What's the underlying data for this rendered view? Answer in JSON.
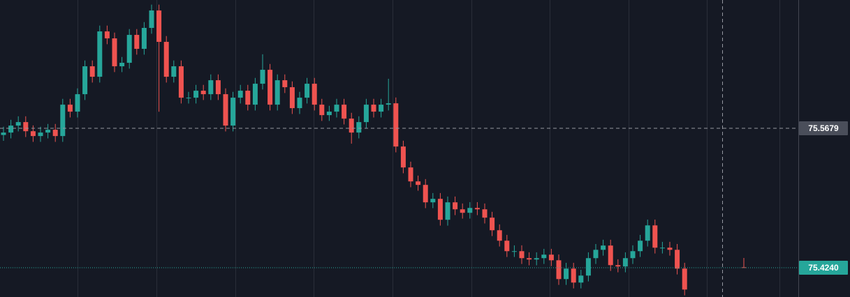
{
  "chart_data": {
    "type": "candlestick",
    "up_color": "#26a69a",
    "down_color": "#ef5350",
    "ylim": [
      75.3938,
      75.7003
    ],
    "grid": true,
    "crosshair_price": 75.5679,
    "last_price": {
      "value": 75.424,
      "label": "75.4240"
    },
    "open": [
      75.561,
      75.5635,
      75.5707,
      75.5743,
      75.5649,
      75.5599,
      75.5635,
      75.5664,
      75.5599,
      75.5923,
      75.5851,
      75.6031,
      75.6319,
      75.6211,
      75.6679,
      75.6607,
      75.6319,
      75.6355,
      75.6643,
      75.6499,
      75.6715,
      75.6895,
      75.6571,
      75.6211,
      75.6319,
      75.5995,
      75.5995,
      75.6067,
      75.6031,
      75.6175,
      75.6031,
      75.5707,
      75.5995,
      75.6067,
      75.5923,
      75.6139,
      75.6283,
      75.5923,
      75.6175,
      75.6103,
      75.5887,
      75.5995,
      75.6139,
      75.5923,
      75.5815,
      75.5851,
      75.5923,
      75.5779,
      75.5635,
      75.5743,
      75.5923,
      75.5851,
      75.5923,
      75.5937,
      75.5491,
      75.5275,
      75.5131,
      75.5095,
      75.4915,
      75.4951,
      75.4735,
      75.4915,
      75.4843,
      75.4807,
      75.4857,
      75.4843,
      75.4757,
      75.4627,
      75.4519,
      75.4411,
      75.4411,
      75.4339,
      75.4325,
      75.4339,
      75.4375,
      75.4317,
      75.4123,
      75.4231,
      75.4087,
      75.4159,
      75.4339,
      75.4425,
      75.4469,
      75.4267,
      75.4253,
      75.4339,
      75.4411,
      75.4519,
      75.4677,
      75.4447,
      75.4447,
      75.4425,
      75.4231,
      null,
      null,
      null,
      null,
      null,
      null,
      null,
      75.4245
    ],
    "high": [
      75.5695,
      75.5767,
      75.5803,
      75.5803,
      75.5709,
      75.5695,
      75.5724,
      75.5724,
      75.5983,
      75.5983,
      75.6091,
      75.6379,
      75.6379,
      75.6739,
      75.6739,
      75.6667,
      75.6415,
      75.6703,
      75.6703,
      75.6775,
      75.6955,
      75.6955,
      75.6631,
      75.6379,
      75.6379,
      75.6055,
      75.6127,
      75.6127,
      75.6235,
      75.6235,
      75.6091,
      75.6055,
      75.6127,
      75.6127,
      75.6199,
      75.6443,
      75.6343,
      75.6235,
      75.6235,
      75.6163,
      75.6055,
      75.6199,
      75.6199,
      75.5983,
      75.5911,
      75.5983,
      75.5983,
      75.5839,
      75.5803,
      75.5983,
      75.5983,
      75.5983,
      75.619,
      75.5997,
      75.5551,
      75.5335,
      75.5191,
      75.5155,
      75.5011,
      75.5011,
      75.4975,
      75.4975,
      75.4903,
      75.4917,
      75.4917,
      75.4903,
      75.4817,
      75.4687,
      75.4579,
      75.4471,
      75.4471,
      75.4399,
      75.4399,
      75.4435,
      75.4435,
      75.4377,
      75.4291,
      75.4291,
      75.4219,
      75.4399,
      75.4485,
      75.4529,
      75.4529,
      75.4327,
      75.4399,
      75.4471,
      75.4579,
      75.4737,
      75.4737,
      75.4507,
      75.4507,
      75.4485,
      75.4291,
      null,
      null,
      null,
      null,
      null,
      null,
      null,
      75.4341
    ],
    "low": [
      75.555,
      75.5575,
      75.5647,
      75.5589,
      75.5539,
      75.5539,
      75.5575,
      75.5539,
      75.5539,
      75.5791,
      75.5791,
      75.5971,
      75.6151,
      75.6151,
      75.6547,
      75.6259,
      75.6259,
      75.6295,
      75.6439,
      75.6439,
      75.6655,
      75.585,
      75.6151,
      75.6151,
      75.5935,
      75.5935,
      75.5935,
      75.5971,
      75.5971,
      75.5971,
      75.5647,
      75.5647,
      75.5935,
      75.5863,
      75.5863,
      75.6079,
      75.5863,
      75.5863,
      75.6043,
      75.5827,
      75.5827,
      75.5935,
      75.5863,
      75.5755,
      75.5755,
      75.5791,
      75.5719,
      75.552,
      75.5575,
      75.5683,
      75.5791,
      75.5791,
      75.5863,
      75.5431,
      75.5215,
      75.5071,
      75.5035,
      75.4855,
      75.4855,
      75.4675,
      75.4675,
      75.4783,
      75.4747,
      75.4747,
      75.4783,
      75.4697,
      75.4567,
      75.4459,
      75.4351,
      75.4351,
      75.4279,
      75.4265,
      75.4265,
      75.4279,
      75.4257,
      75.4063,
      75.4063,
      75.4027,
      75.4027,
      75.4099,
      75.4279,
      75.4365,
      75.4207,
      75.4193,
      75.4193,
      75.4279,
      75.4351,
      75.4459,
      75.4387,
      75.4387,
      75.4365,
      75.4171,
      75.3955,
      null,
      null,
      null,
      null,
      null,
      null,
      null,
      75.4238
    ],
    "close": [
      75.5635,
      75.5707,
      75.5743,
      75.5649,
      75.5599,
      75.5635,
      75.5664,
      75.5599,
      75.5923,
      75.5851,
      75.6031,
      75.6319,
      75.6211,
      75.6679,
      75.6607,
      75.6319,
      75.6355,
      75.6643,
      75.6499,
      75.6715,
      75.6895,
      75.6571,
      75.6211,
      75.6319,
      75.5995,
      75.5995,
      75.6067,
      75.6031,
      75.6175,
      75.6031,
      75.5707,
      75.5995,
      75.6067,
      75.5923,
      75.6139,
      75.6283,
      75.5923,
      75.6175,
      75.6103,
      75.5887,
      75.5995,
      75.6139,
      75.5923,
      75.5815,
      75.5851,
      75.5923,
      75.5779,
      75.5635,
      75.5743,
      75.5923,
      75.5851,
      75.5923,
      75.5937,
      75.5491,
      75.5275,
      75.5131,
      75.5095,
      75.4915,
      75.4951,
      75.4735,
      75.4915,
      75.4843,
      75.4807,
      75.4857,
      75.4843,
      75.4757,
      75.4627,
      75.4519,
      75.4411,
      75.4411,
      75.4339,
      75.4325,
      75.4339,
      75.4375,
      75.4317,
      75.4123,
      75.4231,
      75.4087,
      75.4159,
      75.4339,
      75.4425,
      75.4469,
      75.4267,
      75.4253,
      75.4339,
      75.4411,
      75.4519,
      75.4677,
      75.4447,
      75.4447,
      75.4425,
      75.4231,
      75.4015,
      null,
      null,
      null,
      null,
      null,
      null,
      null,
      75.424
    ]
  }
}
